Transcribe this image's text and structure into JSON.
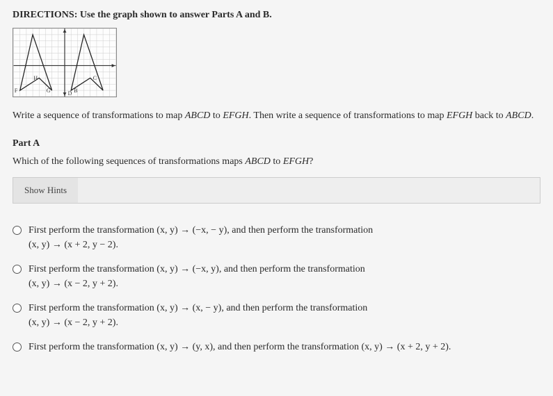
{
  "directions": "DIRECTIONS: Use the graph shown to answer Parts A and B.",
  "graph": {
    "width": 150,
    "height": 100,
    "xRange": [
      -8,
      8
    ],
    "yRange": [
      -5,
      6
    ],
    "gridColor": "#cccccc",
    "axisColor": "#333333",
    "shapes": [
      {
        "name": "ABCD",
        "points": [
          [
            -7,
            -4
          ],
          [
            -5,
            5
          ],
          [
            -2,
            -4
          ],
          [
            -4,
            -2
          ]
        ],
        "labels": [
          "F",
          "",
          "G",
          "H"
        ],
        "stroke": "#222222",
        "fill": "none"
      },
      {
        "name": "EFGH",
        "points": [
          [
            1,
            -4
          ],
          [
            3,
            5
          ],
          [
            6,
            -4
          ],
          [
            4,
            -2
          ]
        ],
        "labels": [
          "B",
          "",
          "",
          "C"
        ],
        "stroke": "#222222",
        "fill": "none"
      }
    ],
    "axisLabels": {
      "d": "D"
    }
  },
  "instruction_p1": "Write a sequence of transformations to map ",
  "instruction_abcd1": "ABCD",
  "instruction_p2": " to ",
  "instruction_efgh1": "EFGH",
  "instruction_p3": ". Then write a sequence of transformations to map ",
  "instruction_efgh2": "EFGH",
  "instruction_p4": " back to ",
  "instruction_abcd2": "ABCD",
  "instruction_p5": ".",
  "partA": {
    "label": "Part A",
    "question_p1": "Which of the following sequences of transformations maps ",
    "question_abcd": "ABCD",
    "question_p2": " to ",
    "question_efgh": "EFGH",
    "question_p3": "?"
  },
  "hints": "Show Hints",
  "options": [
    {
      "line1": "First perform the transformation (x,  y)  →   (−x,  − y), and then perform the transformation",
      "line2": "(x,  y)  →   (x + 2,  y − 2)."
    },
    {
      "line1": "First perform the transformation (x,  y)  →   (−x,  y), and then perform the transformation",
      "line2": "(x,  y)  →   (x − 2,  y + 2)."
    },
    {
      "line1": "First perform the transformation (x,  y)  →   (x,  − y), and then perform the transformation",
      "line2": "(x,  y)  →   (x − 2,  y + 2)."
    },
    {
      "line1": "First perform the transformation (x,  y)  →   (y,  x), and then perform the transformation (x,  y)  →   (x + 2,  y + 2).",
      "line2": ""
    }
  ]
}
